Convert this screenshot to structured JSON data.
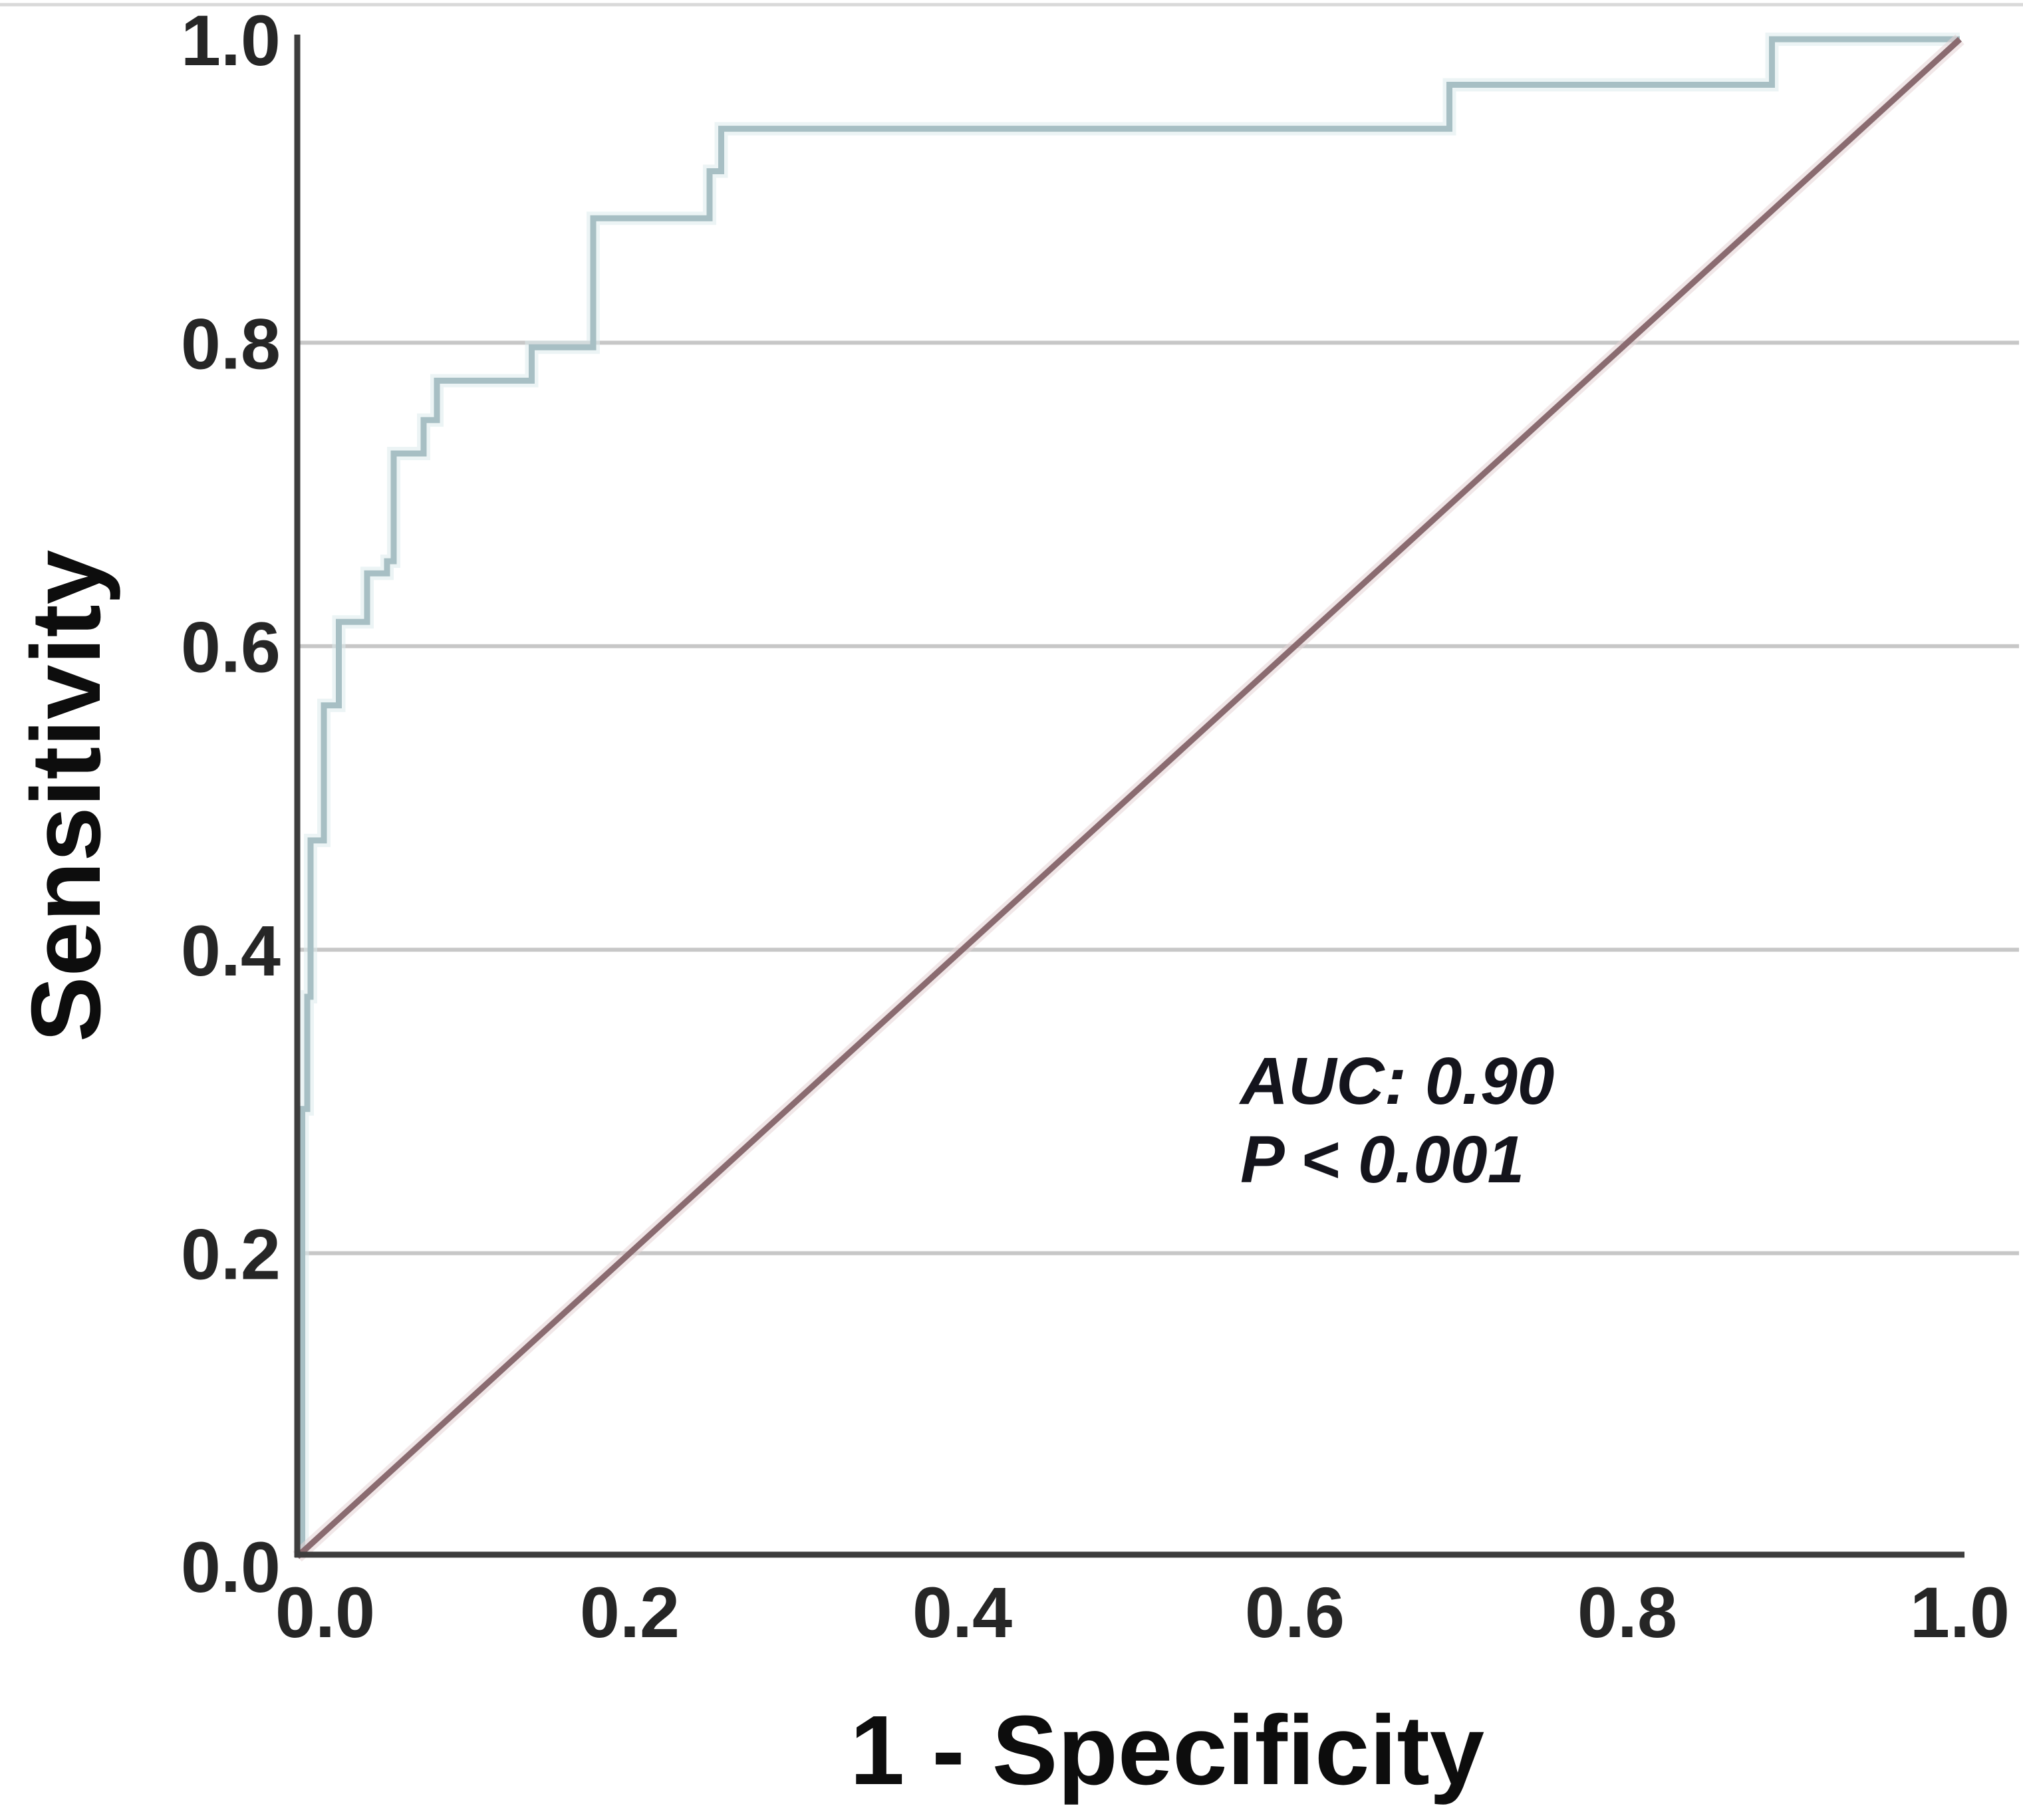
{
  "figure": {
    "background_color": "#ffffff",
    "top_border_color": "#d9d9d9"
  },
  "chart_data": {
    "type": "line",
    "subtype": "roc-step-curve",
    "title": "",
    "xlabel": "1 - Specificity",
    "ylabel": "Sensitivity",
    "xlim": [
      0.0,
      1.0
    ],
    "ylim": [
      0.0,
      1.0
    ],
    "x_ticks": [
      {
        "value": 0.0,
        "label": "0.0"
      },
      {
        "value": 0.2,
        "label": "0.2"
      },
      {
        "value": 0.4,
        "label": "0.4"
      },
      {
        "value": 0.6,
        "label": "0.6"
      },
      {
        "value": 0.8,
        "label": "0.8"
      },
      {
        "value": 1.0,
        "label": "1.0"
      }
    ],
    "y_ticks": [
      {
        "value": 0.0,
        "label": "0.0"
      },
      {
        "value": 0.2,
        "label": "0.2"
      },
      {
        "value": 0.4,
        "label": "0.4"
      },
      {
        "value": 0.6,
        "label": "0.6"
      },
      {
        "value": 0.8,
        "label": "0.8"
      },
      {
        "value": 1.0,
        "label": "1.0"
      }
    ],
    "grid": {
      "horizontal_lines_at": [
        0.2,
        0.4,
        0.6,
        0.8
      ],
      "vertical_lines": false,
      "color": "#c7c7c7"
    },
    "legend": "none",
    "axis_color": "#3d3d3d",
    "series": [
      {
        "name": "ROC curve",
        "draw_style": "step",
        "color": "#a7bfc4",
        "halo_color": "#dcebec",
        "x": [
          0.003,
          0.003,
          0.006,
          0.006,
          0.008,
          0.008,
          0.016,
          0.016,
          0.025,
          0.025,
          0.042,
          0.042,
          0.054,
          0.054,
          0.058,
          0.058,
          0.076,
          0.076,
          0.084,
          0.084,
          0.141,
          0.141,
          0.178,
          0.178,
          0.248,
          0.248,
          0.255,
          0.255,
          0.693,
          0.693,
          0.887,
          0.887,
          1.0
        ],
        "y": [
          0.0,
          0.295,
          0.295,
          0.369,
          0.369,
          0.472,
          0.472,
          0.561,
          0.561,
          0.616,
          0.616,
          0.648,
          0.648,
          0.656,
          0.656,
          0.727,
          0.727,
          0.749,
          0.749,
          0.775,
          0.775,
          0.797,
          0.797,
          0.882,
          0.882,
          0.913,
          0.913,
          0.941,
          0.941,
          0.97,
          0.97,
          1.0,
          1.0
        ]
      },
      {
        "name": "Reference diagonal",
        "draw_style": "line",
        "color": "#8a6b70",
        "halo_color": "#e5d4d6",
        "x": [
          0.0,
          1.0
        ],
        "y": [
          0.0,
          1.0
        ]
      }
    ],
    "annotations": [
      {
        "text": "AUC: 0.90",
        "x": 0.567,
        "y": 0.298
      },
      {
        "text": "P < 0.001",
        "x": 0.567,
        "y": 0.247
      }
    ]
  }
}
